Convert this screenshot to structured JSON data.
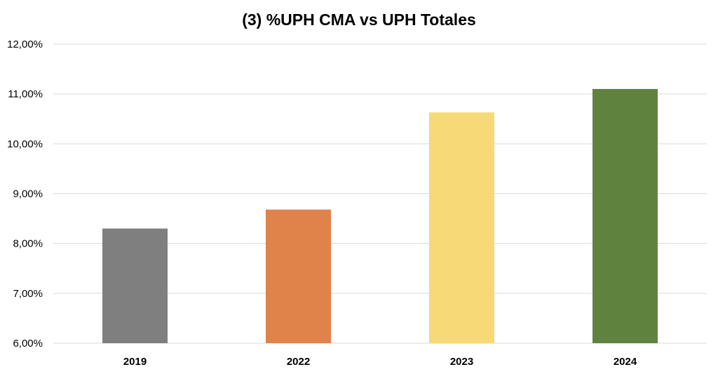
{
  "chart_data": {
    "type": "bar",
    "title": "(3) %UPH CMA vs UPH Totales",
    "categories": [
      "2019",
      "2022",
      "2023",
      "2024"
    ],
    "values": [
      8.3,
      8.68,
      10.63,
      11.1
    ],
    "value_unit": "%",
    "ylim": [
      6,
      12
    ],
    "yticks": [
      6,
      7,
      8,
      9,
      10,
      11,
      12
    ],
    "ytick_labels": [
      "6,00%",
      "7,00%",
      "8,00%",
      "9,00%",
      "10,00%",
      "11,00%",
      "12,00%"
    ],
    "colors": [
      "#7f7f7f",
      "#e0834a",
      "#f7d978",
      "#5f833f"
    ],
    "grid": true,
    "legend": "none"
  }
}
